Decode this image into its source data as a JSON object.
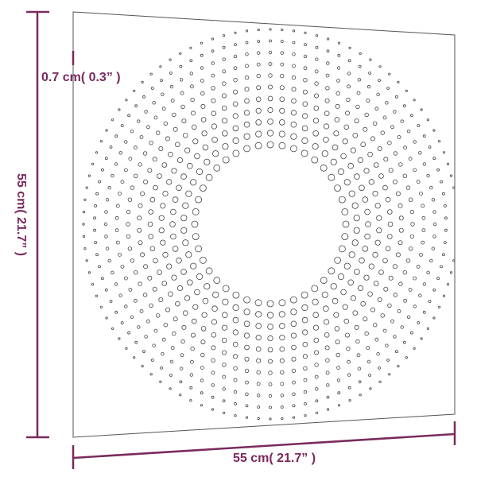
{
  "dimensions": {
    "height": "55 cm( 21.7” )",
    "width": "55 cm( 21.7” )",
    "thickness": "0.7 cm( 0.3” )"
  }
}
